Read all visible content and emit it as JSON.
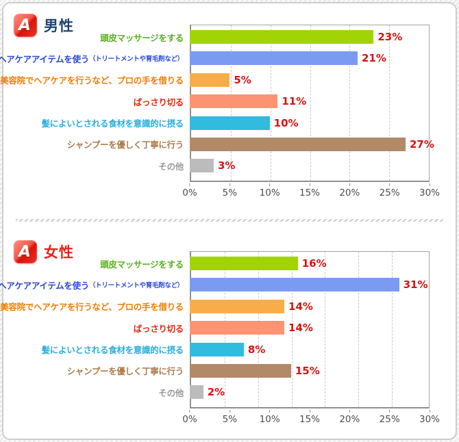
{
  "answer_icon": {
    "label": "A",
    "color": "#e3170b"
  },
  "value_color": "#d9120f",
  "chart_data": [
    {
      "type": "bar",
      "title": "男性",
      "title_color": "#1d4370",
      "unit": "%",
      "xlim": [
        0,
        30
      ],
      "bar_scale_max": 30,
      "grid": "dashed-vertical",
      "gridline_values": [
        5,
        10,
        15,
        20,
        25
      ],
      "tick_labels": [
        "0%",
        "5%",
        "10%",
        "15%",
        "20%",
        "25%",
        "30%"
      ],
      "categories": [
        "頭皮マッサージをする",
        "ヘアケアアイテムを使う（トリートメントや育毛剤など）",
        "美容院でヘアケアを行うなど、プロの手を借りる",
        "ばっさり切る",
        "髪によいとされる食材を意識的に摂る",
        "シャンプーを優しく丁寧に行う",
        "その他"
      ],
      "values": [
        23,
        21,
        5,
        11,
        10,
        27,
        3
      ],
      "rows": [
        {
          "label": "頭皮マッサージをする",
          "label_suffix": "",
          "value": 23,
          "display": "23%",
          "label_color": "#58b01c",
          "bar_color": "#a2d405"
        },
        {
          "label": "ヘアケアアイテムを使う",
          "label_suffix": "（トリートメントや育毛剤など）",
          "value": 21,
          "display": "21%",
          "label_color": "#2947d8",
          "bar_color": "#7b9bf3"
        },
        {
          "label": "美容院でヘアケアを行うなど、プロの手を借りる",
          "label_suffix": "",
          "value": 5,
          "display": "5%",
          "label_color": "#ef7d04",
          "bar_color": "#f9ad49"
        },
        {
          "label": "ばっさり切る",
          "label_suffix": "",
          "value": 11,
          "display": "11%",
          "label_color": "#e8260f",
          "bar_color": "#fc9373"
        },
        {
          "label": "髪によいとされる食材を意識的に摂る",
          "label_suffix": "",
          "value": 10,
          "display": "10%",
          "label_color": "#29addc",
          "bar_color": "#30bbdf"
        },
        {
          "label": "シャンプーを優しく丁寧に行う",
          "label_suffix": "",
          "value": 27,
          "display": "27%",
          "label_color": "#ac7a4b",
          "bar_color": "#b28a67"
        },
        {
          "label": "その他",
          "label_suffix": "",
          "value": 3,
          "display": "3%",
          "label_color": "#999999",
          "bar_color": "#bcbcbc"
        }
      ]
    },
    {
      "type": "bar",
      "title": "女性",
      "title_color": "#e8231c",
      "unit": "%",
      "xlim": [
        0,
        30
      ],
      "bar_scale_max": 35.5,
      "grid": "dashed-vertical",
      "gridline_values": [
        5,
        10,
        15,
        20,
        25,
        30
      ],
      "tick_labels": [
        "0%",
        "5%",
        "10%",
        "15%",
        "20%",
        "25%",
        "30%"
      ],
      "categories": [
        "頭皮マッサージをする",
        "ヘアケアアイテムを使う（トリートメントや育毛剤など）",
        "美容院でヘアケアを行うなど、プロの手を借りる",
        "ばっさり切る",
        "髪によいとされる食材を意識的に摂る",
        "シャンプーを優しく丁寧に行う",
        "その他"
      ],
      "values": [
        16,
        31,
        14,
        14,
        8,
        15,
        2
      ],
      "rows": [
        {
          "label": "頭皮マッサージをする",
          "label_suffix": "",
          "value": 16,
          "display": "16%",
          "label_color": "#58b01c",
          "bar_color": "#a2d405"
        },
        {
          "label": "ヘアケアアイテムを使う",
          "label_suffix": "（トリートメントや育毛剤など）",
          "value": 31,
          "display": "31%",
          "label_color": "#2947d8",
          "bar_color": "#7b9bf3"
        },
        {
          "label": "美容院でヘアケアを行うなど、プロの手を借りる",
          "label_suffix": "",
          "value": 14,
          "display": "14%",
          "label_color": "#ef7d04",
          "bar_color": "#f9ad49"
        },
        {
          "label": "ばっさり切る",
          "label_suffix": "",
          "value": 14,
          "display": "14%",
          "label_color": "#e8260f",
          "bar_color": "#fc9373"
        },
        {
          "label": "髪によいとされる食材を意識的に摂る",
          "label_suffix": "",
          "value": 8,
          "display": "8%",
          "label_color": "#29addc",
          "bar_color": "#30bbdf"
        },
        {
          "label": "シャンプーを優しく丁寧に行う",
          "label_suffix": "",
          "value": 15,
          "display": "15%",
          "label_color": "#ac7a4b",
          "bar_color": "#b28a67"
        },
        {
          "label": "その他",
          "label_suffix": "",
          "value": 2,
          "display": "2%",
          "label_color": "#999999",
          "bar_color": "#bcbcbc"
        }
      ]
    }
  ]
}
